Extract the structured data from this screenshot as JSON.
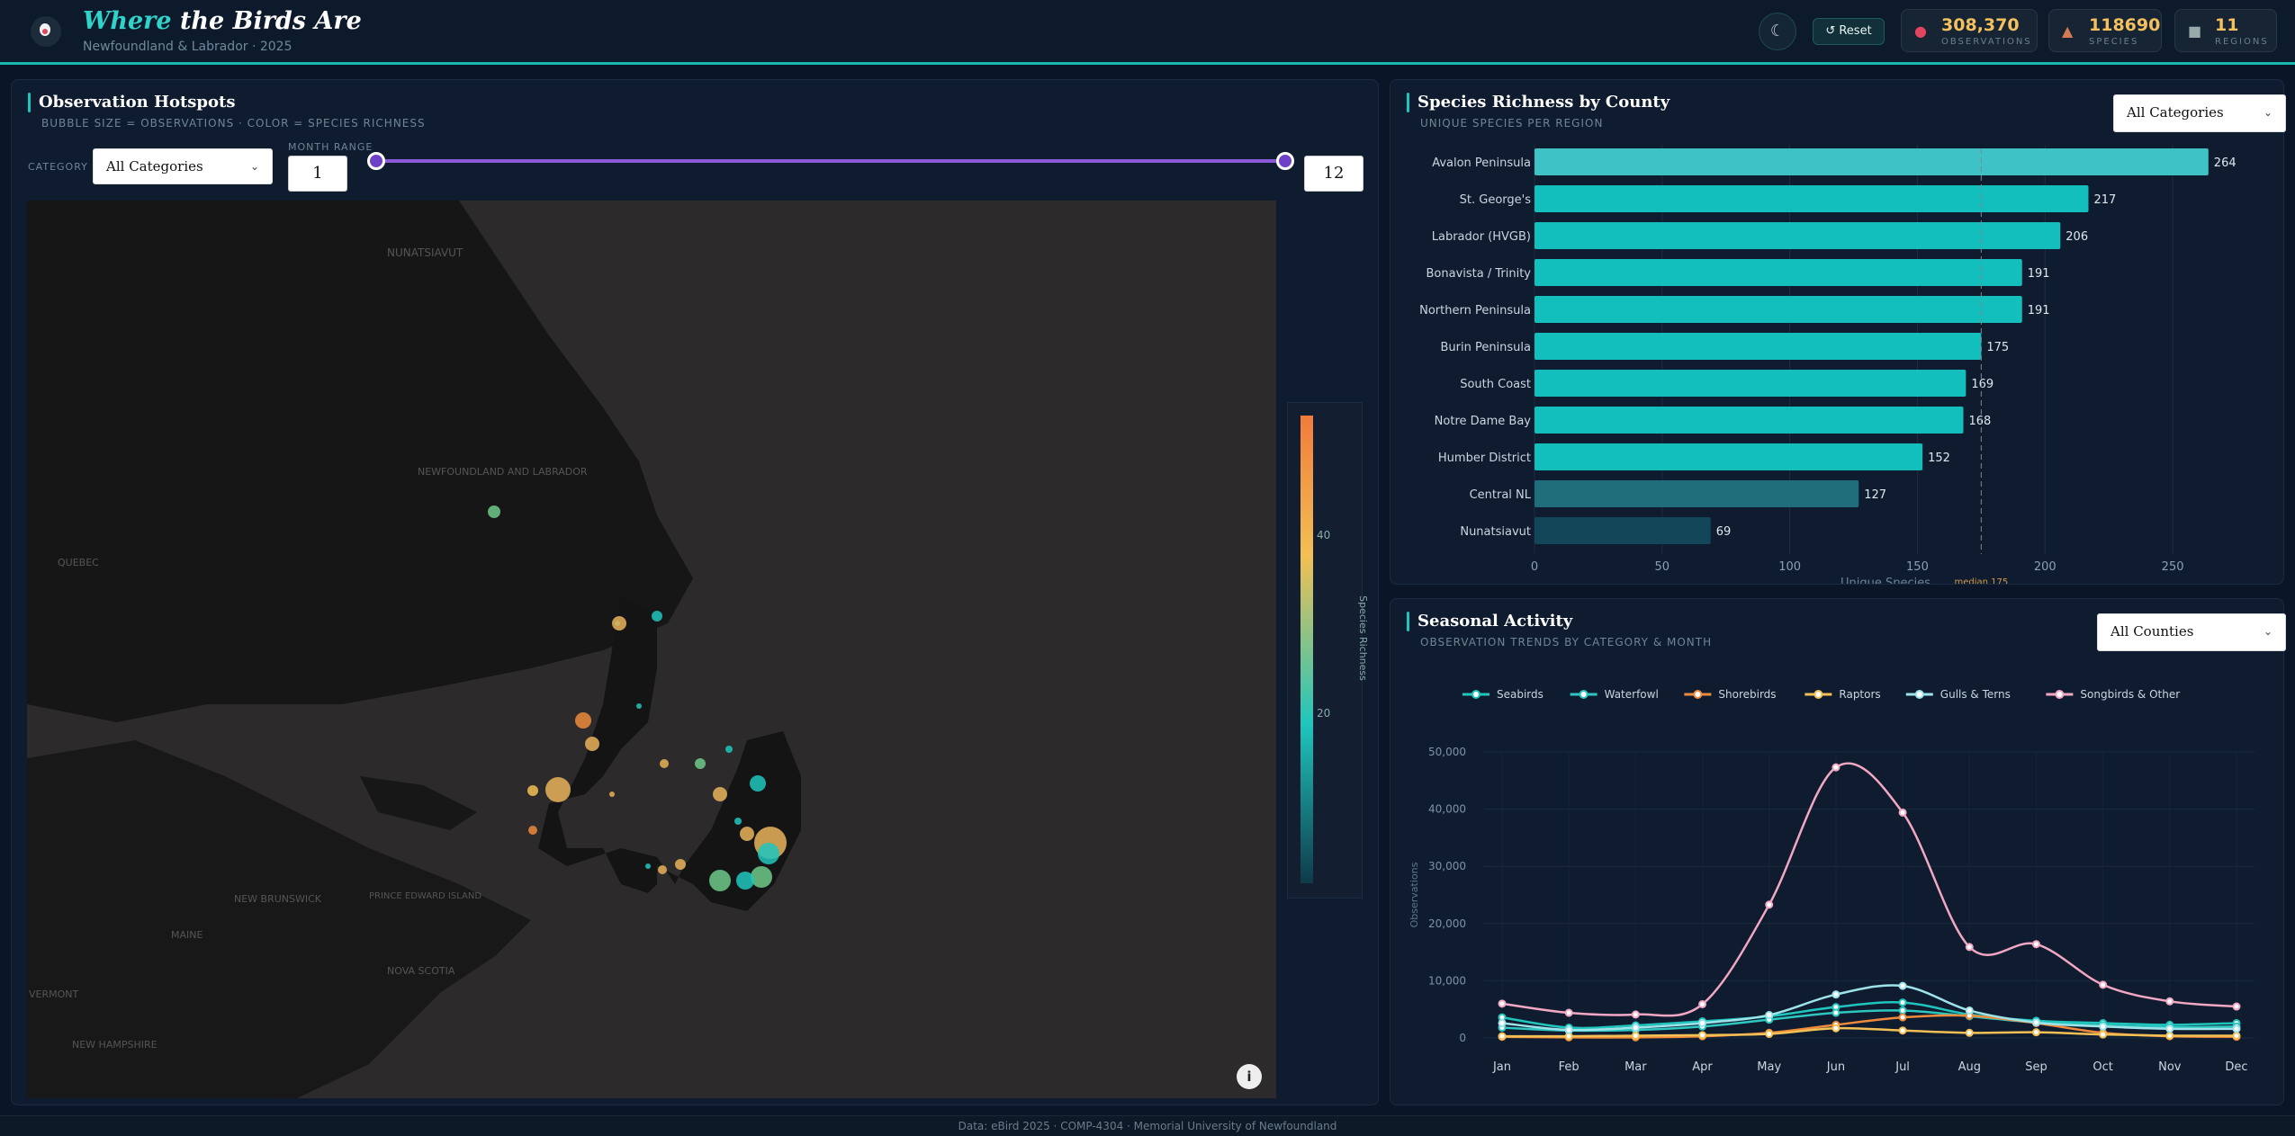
{
  "header": {
    "title_accent": "Where",
    "title_rest": " the Birds Are",
    "subtitle": "Newfoundland & Labrador · 2025",
    "theme_icon": "moon-icon",
    "reset_label": "↺ Reset",
    "stats": [
      {
        "icon": "pin-icon",
        "value": "308,370",
        "label": "OBSERVATIONS"
      },
      {
        "icon": "bird-icon",
        "value": "118690",
        "label": "SPECIES"
      },
      {
        "icon": "region-icon",
        "value": "11",
        "label": "REGIONS"
      }
    ]
  },
  "hotspots": {
    "title": "Observation Hotspots",
    "subtitle": "BUBBLE SIZE = OBSERVATIONS · COLOR = SPECIES RICHNESS",
    "category_label": "CATEGORY",
    "category_value": "All Categories",
    "month_label": "MONTH RANGE",
    "month_min": "1",
    "month_max": "12",
    "range_start_fraction": 0,
    "range_end_fraction": 1,
    "colorbar_title": "Species Richness",
    "colorbar_ticks": [
      "40",
      "20"
    ],
    "map_labels": [
      "NUNATSIAVUT",
      "NEWFOUNDLAND AND LABRADOR",
      "QUEBEC",
      "NEW BRUNSWICK",
      "PRINCE EDWARD ISLAND",
      "NOVA SCOTIA",
      "MAINE",
      "VERMONT",
      "NEW HAMPSHIRE"
    ],
    "info_icon": "info-icon"
  },
  "richness": {
    "title": "Species Richness by County",
    "subtitle": "UNIQUE SPECIES PER REGION",
    "filter_value": "All Categories",
    "median_label": "median 175",
    "chart_data": {
      "type": "bar",
      "orientation": "horizontal",
      "categories": [
        "Avalon Peninsula",
        "St. George's",
        "Labrador (HVGB)",
        "Bonavista / Trinity",
        "Northern Peninsula",
        "Burin Peninsula",
        "South Coast",
        "Notre Dame Bay",
        "Humber District",
        "Central NL",
        "Nunatsiavut"
      ],
      "values": [
        264,
        217,
        206,
        191,
        191,
        175,
        169,
        168,
        152,
        127,
        69
      ],
      "xlabel": "Unique Species",
      "xlim": [
        0,
        275
      ],
      "xticks": [
        0,
        50,
        100,
        150,
        200,
        250
      ],
      "median": 175,
      "grid": true
    }
  },
  "seasonal": {
    "title": "Seasonal Activity",
    "subtitle": "OBSERVATION TRENDS BY CATEGORY & MONTH",
    "filter_value": "All Counties",
    "chart_data": {
      "type": "line",
      "x": [
        "Jan",
        "Feb",
        "Mar",
        "Apr",
        "May",
        "Jun",
        "Jul",
        "Aug",
        "Sep",
        "Oct",
        "Nov",
        "Dec"
      ],
      "ylabel": "Observations",
      "ylim": [
        0,
        50000
      ],
      "yticks": [
        "0",
        "10,000",
        "20,000",
        "30,000",
        "40,000",
        "50,000"
      ],
      "legend_position": "top",
      "grid": true,
      "series": [
        {
          "name": "Seabirds",
          "color": "#1fc5bd",
          "values": [
            3600,
            1800,
            2200,
            2900,
            3800,
            5400,
            6200,
            4100,
            3000,
            2600,
            2300,
            2600
          ]
        },
        {
          "name": "Waterfowl",
          "color": "#2ec7c0",
          "values": [
            1800,
            1300,
            1400,
            2000,
            3200,
            4400,
            4800,
            3800,
            2700,
            2200,
            1900,
            2000
          ]
        },
        {
          "name": "Shorebirds",
          "color": "#ee8a3c",
          "values": [
            200,
            100,
            100,
            300,
            900,
            2300,
            3600,
            3900,
            2600,
            900,
            300,
            200
          ]
        },
        {
          "name": "Raptors",
          "color": "#f2c054",
          "values": [
            300,
            300,
            400,
            500,
            700,
            1700,
            1300,
            900,
            1000,
            600,
            400,
            400
          ]
        },
        {
          "name": "Gulls & Terns",
          "color": "#9ee3ea",
          "values": [
            2600,
            1400,
            1800,
            2600,
            4000,
            7600,
            9100,
            4800,
            2700,
            2000,
            1600,
            1600
          ]
        },
        {
          "name": "Songbirds & Other",
          "color": "#f2a7c3",
          "values": [
            6000,
            4400,
            4100,
            5900,
            23300,
            47300,
            39400,
            15900,
            16400,
            9300,
            6400,
            5500
          ]
        }
      ]
    }
  },
  "footer": "Data: eBird 2025 · COMP-4304 · Memorial University of Newfoundland"
}
